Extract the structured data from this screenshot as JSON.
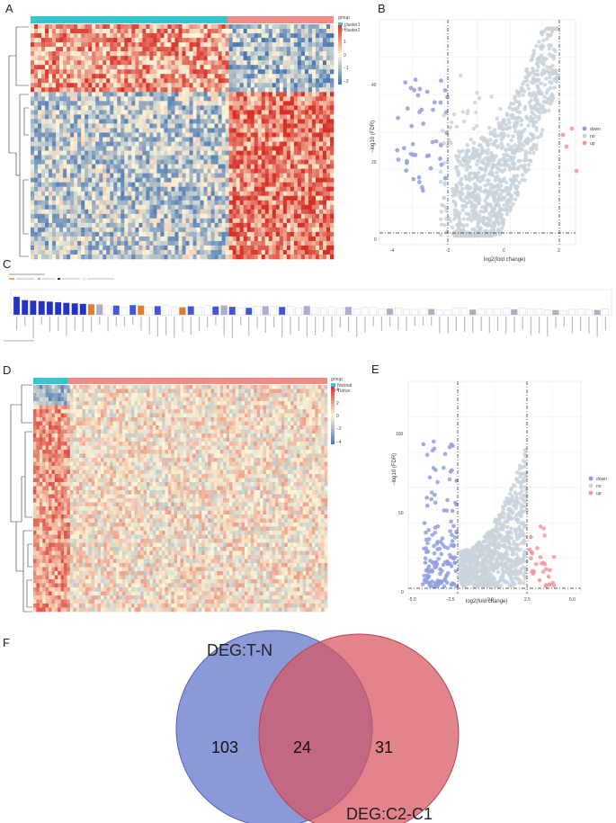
{
  "panels": {
    "A": {
      "letter": "A",
      "legend_title": "group",
      "groups": [
        {
          "name": "cluster1",
          "color": "#36c6cf"
        },
        {
          "name": "cluster2",
          "color": "#f08b86"
        }
      ],
      "scale_ticks": [
        "2",
        "1",
        "0",
        "−1",
        "−2"
      ]
    },
    "B": {
      "letter": "B",
      "xlabel": "log2(fold change)",
      "ylabel": "−log10 (FDR)",
      "xticks": [
        "-4",
        "-2",
        "0",
        "2"
      ],
      "yticks": [
        "0",
        "20",
        "40"
      ],
      "legend": [
        {
          "name": "down",
          "color": "#8f9fe0"
        },
        {
          "name": "no",
          "color": "#c9d2db"
        },
        {
          "name": "up",
          "color": "#f2979c"
        }
      ]
    },
    "C": {
      "letter": "C"
    },
    "D": {
      "letter": "D",
      "legend_title": "group",
      "groups": [
        {
          "name": "Normal",
          "color": "#36c6cf"
        },
        {
          "name": "Tumor",
          "color": "#f08b86"
        }
      ],
      "scale_ticks": [
        "4",
        "2",
        "0",
        "−2",
        "−4"
      ]
    },
    "E": {
      "letter": "E",
      "xlabel": "log2(fold change)",
      "ylabel": "−log10 (FDR)",
      "xticks": [
        "-5.0",
        "-2.5",
        "0.0",
        "2.5",
        "5.0"
      ],
      "yticks": [
        "0",
        "50",
        "100"
      ],
      "legend": [
        {
          "name": "down",
          "color": "#8f9fe0"
        },
        {
          "name": "no",
          "color": "#c9d2db"
        },
        {
          "name": "up",
          "color": "#f2979c"
        }
      ]
    },
    "F": {
      "letter": "F",
      "set1_label": "DEG:T-N",
      "set2_label": "DEG:C2-C1",
      "only1": "103",
      "both": "24",
      "only2": "31",
      "set1_color": "#6f7fd0",
      "set2_color": "#d85560"
    }
  }
}
